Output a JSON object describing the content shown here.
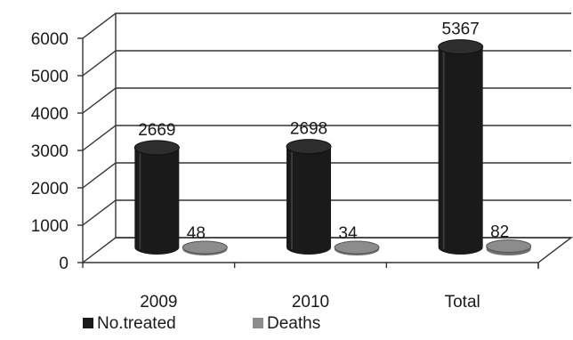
{
  "chart_data": {
    "type": "bar",
    "title": "",
    "xlabel": "",
    "ylabel": "",
    "categories": [
      "2009",
      "2010",
      "Total"
    ],
    "series": [
      {
        "name": "No.treated",
        "values": [
          2669,
          2698,
          5367
        ],
        "color": "#1a1a1a"
      },
      {
        "name": "Deaths",
        "values": [
          48,
          34,
          82
        ],
        "color": "#8c8c8c"
      }
    ],
    "data_labels": [
      [
        "2669",
        "2698",
        "5367"
      ],
      [
        "48",
        "34",
        "82"
      ]
    ],
    "ylim": [
      0,
      6000
    ],
    "yticks": [
      "0",
      "1000",
      "2000",
      "3000",
      "4000",
      "5000",
      "6000"
    ],
    "grid": true,
    "three_d": true,
    "legend_position": "bottom-left"
  }
}
